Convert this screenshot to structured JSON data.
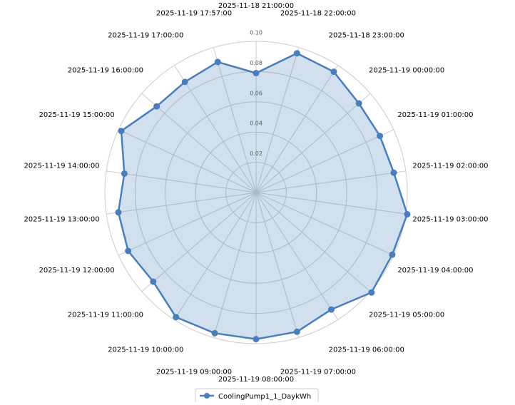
{
  "chart_data": {
    "type": "radar",
    "categories": [
      "2025-11-18 21:00:00",
      "2025-11-18 22:00:00",
      "2025-11-18 23:00:00",
      "2025-11-19 00:00:00",
      "2025-11-19 01:00:00",
      "2025-11-19 02:00:00",
      "2025-11-19 03:00:00",
      "2025-11-19 04:00:00",
      "2025-11-19 05:00:00",
      "2025-11-19 06:00:00",
      "2025-11-19 07:00:00",
      "2025-11-19 08:00:00",
      "2025-11-19 09:00:00",
      "2025-11-19 10:00:00",
      "2025-11-19 11:00:00",
      "2025-11-19 12:00:00",
      "2025-11-19 13:00:00",
      "2025-11-19 14:00:00",
      "2025-11-19 15:00:00",
      "2025-11-19 16:00:00",
      "2025-11-19 17:00:00",
      "2025-11-19 17:57:00"
    ],
    "series": [
      {
        "name": "CoolingPump1_1_DaykWh",
        "color": "#4a7ebb",
        "values": [
          0.079,
          0.096,
          0.095,
          0.09,
          0.09,
          0.092,
          0.101,
          0.099,
          0.101,
          0.092,
          0.096,
          0.097,
          0.097,
          0.098,
          0.09,
          0.093,
          0.092,
          0.088,
          0.098,
          0.087,
          0.087,
          0.09
        ]
      }
    ],
    "ylim": [
      0,
      0.1
    ],
    "yticks": [
      0.02,
      0.04,
      0.06,
      0.08,
      {
        "value": 0.1,
        "label": "0.10"
      }
    ],
    "grid": true,
    "legend": "bottom"
  }
}
